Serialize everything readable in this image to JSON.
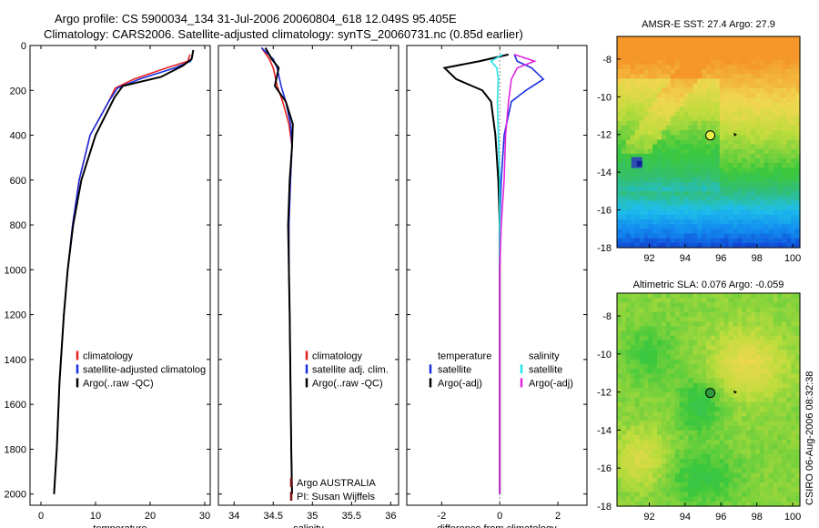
{
  "header": {
    "line1": "Argo profile: CS 5900034_134 31-Jul-2006 20060804_618 12.049S 95.405E",
    "line2": "Climatology: CARS2006. Satellite-adjusted climatology: synTS_20060731.nc (0.85d earlier)"
  },
  "side_text": "CSIRO 06-Aug-2006 08:32:38",
  "colors": {
    "climatology": "#e8211f",
    "satellite": "#1a2fe0",
    "argo": "#000000",
    "satellite_sal_diff": "#22e5e8",
    "argo_sal_diff": "#e023e0"
  },
  "chart_data": [
    {
      "type": "line",
      "xlabel": "temperature",
      "ylabel": "",
      "xlim": [
        -2,
        31
      ],
      "ylim": [
        2050,
        0
      ],
      "xticks": [
        "0",
        "10",
        "20",
        "30"
      ],
      "yticks": [
        "0",
        "200",
        "400",
        "600",
        "800",
        "1000",
        "1200",
        "1400",
        "1600",
        "1800",
        "2000"
      ],
      "legend": [
        "climatology",
        "satellite-adjusted climatolog",
        "Argo(..raw -QC)"
      ],
      "legend_position": "lower-right",
      "series": [
        {
          "name": "climatology",
          "color_key": "climatology",
          "x": [
            27.3,
            26.9,
            23.0,
            17.0,
            13.6,
            12.4,
            9.0,
            7.0,
            5.8,
            4.9,
            4.2,
            3.4,
            2.9,
            2.4
          ],
          "y": [
            40,
            70,
            100,
            150,
            190,
            250,
            400,
            600,
            800,
            1000,
            1200,
            1500,
            1800,
            2000
          ]
        },
        {
          "name": "satellite-adjusted climatology",
          "color_key": "satellite",
          "x": [
            27.8,
            27.4,
            24.5,
            18.0,
            14.0,
            12.4,
            9.0,
            7.0,
            5.8,
            4.9,
            4.2,
            3.4,
            2.9,
            2.4
          ],
          "y": [
            40,
            70,
            100,
            150,
            190,
            250,
            400,
            600,
            800,
            1000,
            1200,
            1500,
            1800,
            2000
          ]
        },
        {
          "name": "Argo(..raw -QC)",
          "color_key": "argo",
          "x": [
            27.9,
            27.6,
            26.0,
            22.0,
            15.0,
            13.5,
            10.0,
            7.4,
            5.9,
            4.9,
            4.2,
            3.4,
            2.9,
            2.4
          ],
          "y": [
            20,
            60,
            90,
            140,
            180,
            230,
            400,
            600,
            800,
            1000,
            1200,
            1500,
            1800,
            2000
          ]
        }
      ]
    },
    {
      "type": "line",
      "xlabel": "salinity",
      "ylabel": "",
      "xlim": [
        33.8,
        36.1
      ],
      "ylim": [
        2050,
        0
      ],
      "xticks": [
        "34",
        "34.5",
        "35",
        "35.5",
        "36"
      ],
      "legend": [
        "climatology",
        "satellite adj. clim.",
        "Argo(..raw -QC)"
      ],
      "legend_position": "lower-right",
      "annotations": [
        "Argo AUSTRALIA",
        "PI: Susan Wijffels"
      ],
      "series": [
        {
          "name": "climatology",
          "color_key": "climatology",
          "x": [
            34.35,
            34.45,
            34.5,
            34.55,
            34.62,
            34.7,
            34.74,
            34.72,
            34.7,
            34.7,
            34.71,
            34.72,
            34.73,
            34.74
          ],
          "y": [
            10,
            60,
            100,
            180,
            250,
            350,
            450,
            600,
            800,
            1000,
            1200,
            1500,
            1800,
            2000
          ]
        },
        {
          "name": "satellite adj. clim.",
          "color_key": "satellite",
          "x": [
            34.35,
            34.5,
            34.55,
            34.6,
            34.66,
            34.72,
            34.74,
            34.72,
            34.7,
            34.7,
            34.71,
            34.72,
            34.73,
            34.74
          ],
          "y": [
            10,
            60,
            100,
            180,
            250,
            350,
            450,
            600,
            800,
            1000,
            1200,
            1500,
            1800,
            2000
          ]
        },
        {
          "name": "Argo(..raw -QC)",
          "color_key": "argo",
          "x": [
            34.4,
            34.48,
            34.57,
            34.52,
            34.66,
            34.75,
            34.74,
            34.71,
            34.69,
            34.7,
            34.71,
            34.72,
            34.73,
            34.74
          ],
          "y": [
            10,
            60,
            100,
            180,
            250,
            350,
            450,
            600,
            800,
            1000,
            1200,
            1500,
            1800,
            2000
          ]
        }
      ]
    },
    {
      "type": "line",
      "xlabel": "difference from climatology",
      "ylabel": "",
      "xlim": [
        -3.2,
        3.0
      ],
      "ylim": [
        2050,
        0
      ],
      "xticks": [
        "-2",
        "0",
        "2"
      ],
      "legend_groups": [
        {
          "heading": "temperature",
          "items": [
            "satellite",
            "Argo(-adj)"
          ]
        },
        {
          "heading": "salinity",
          "items": [
            "satellite",
            "Argo(-adj)"
          ]
        }
      ],
      "legend_position": "lower",
      "series": [
        {
          "name": "satellite",
          "group": "temperature",
          "color_key": "satellite",
          "x": [
            0.5,
            0.6,
            1.1,
            1.5,
            0.9,
            0.4,
            0.15,
            0.05,
            0.0,
            0.0,
            0.0,
            0.0
          ],
          "y": [
            40,
            70,
            100,
            150,
            200,
            250,
            400,
            600,
            800,
            1000,
            1500,
            2000
          ]
        },
        {
          "name": "Argo(-adj)",
          "group": "temperature",
          "color_key": "argo",
          "x": [
            0.3,
            -0.7,
            -1.9,
            -1.5,
            -0.6,
            -0.3,
            -0.15,
            -0.05,
            0.0,
            0.0,
            0.0,
            0.0
          ],
          "y": [
            40,
            70,
            100,
            150,
            200,
            250,
            400,
            600,
            800,
            1000,
            1500,
            2000
          ]
        },
        {
          "name": "satellite",
          "group": "salinity",
          "color_key": "satellite_sal_diff",
          "x": [
            0.1,
            -0.3,
            -0.1,
            -0.05,
            -0.08,
            -0.05,
            0.0,
            0.0,
            0.0,
            0.0,
            0.0
          ],
          "y": [
            40,
            70,
            100,
            150,
            250,
            400,
            600,
            800,
            1000,
            1500,
            2000
          ]
        },
        {
          "name": "Argo(-adj)",
          "group": "salinity",
          "color_key": "argo_sal_diff",
          "x": [
            0.5,
            1.2,
            0.6,
            0.4,
            0.3,
            0.2,
            0.15,
            0.05,
            0.0,
            0.0,
            0.0
          ],
          "y": [
            40,
            70,
            100,
            150,
            250,
            400,
            600,
            800,
            1000,
            1500,
            2000
          ]
        }
      ]
    },
    {
      "type": "heatmap",
      "title": "AMSR-E SST: 27.4 Argo: 27.9",
      "xlim": [
        90.2,
        100.4
      ],
      "ylim": [
        -18,
        -6.8
      ],
      "xticks": [
        "92",
        "94",
        "96",
        "98",
        "100"
      ],
      "yticks": [
        "-8",
        "-10",
        "-12",
        "-14",
        "-16",
        "-18"
      ],
      "argo_position": {
        "lon": 95.405,
        "lat": -12.049
      },
      "arrow_position": {
        "lon": 96.9,
        "lat": -12.0
      }
    },
    {
      "type": "heatmap",
      "title": "Altimetric SLA: 0.076 Argo: -0.059",
      "xlim": [
        90.2,
        100.4
      ],
      "ylim": [
        -18,
        -6.8
      ],
      "xticks": [
        "92",
        "94",
        "96",
        "98",
        "100"
      ],
      "yticks": [
        "-8",
        "-10",
        "-12",
        "-14",
        "-16",
        "-18"
      ],
      "argo_position": {
        "lon": 95.405,
        "lat": -12.049
      },
      "arrow_position": {
        "lon": 96.9,
        "lat": -12.0
      }
    }
  ]
}
